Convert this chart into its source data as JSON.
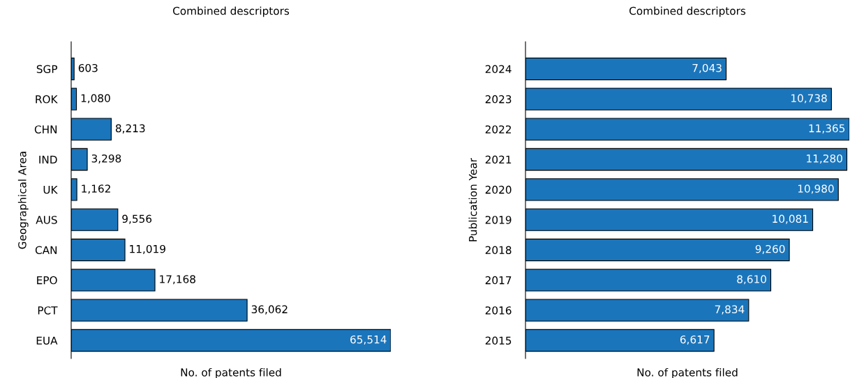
{
  "chart_data": [
    {
      "type": "bar",
      "orientation": "horizontal",
      "title": "Combined descriptors",
      "xlabel": "No. of patents filed",
      "ylabel": "Geographical Area",
      "categories": [
        "SGP",
        "ROK",
        "CHN",
        "IND",
        "UK",
        "AUS",
        "CAN",
        "EPO",
        "PCT",
        "EUA"
      ],
      "values": [
        603,
        1080,
        8213,
        3298,
        1162,
        9556,
        11019,
        17168,
        36062,
        65514
      ],
      "value_labels": [
        "603",
        "1,080",
        "8,213",
        "3,298",
        "1,162",
        "9,556",
        "11,019",
        "17,168",
        "36,062",
        "65,514"
      ],
      "color": "#1b75bb",
      "tick_labels": "y",
      "grid": false,
      "legend": false
    },
    {
      "type": "bar",
      "orientation": "horizontal",
      "title": "Combined descriptors",
      "xlabel": "No. of patents filed",
      "ylabel": "Publication Year",
      "categories": [
        "2024",
        "2023",
        "2022",
        "2021",
        "2020",
        "2019",
        "2018",
        "2017",
        "2016",
        "2015"
      ],
      "values": [
        7043,
        10738,
        11365,
        11280,
        10980,
        10081,
        9260,
        8610,
        7834,
        6617
      ],
      "value_labels": [
        "7,043",
        "10,738",
        "11,365",
        "11,280",
        "10,980",
        "10,081",
        "9,260",
        "8,610",
        "7,834",
        "6,617"
      ],
      "color": "#1b75bb",
      "tick_labels": "y",
      "grid": false,
      "legend": false
    }
  ]
}
